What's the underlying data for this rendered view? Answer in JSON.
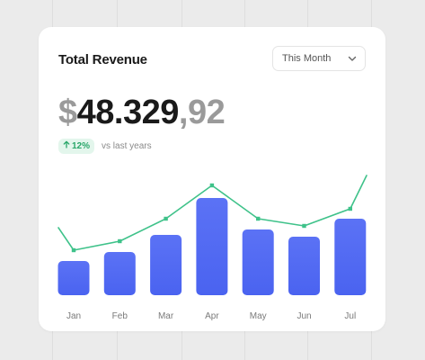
{
  "card": {
    "title": "Total Revenue",
    "period_select": {
      "value": "This Month",
      "icon": "chevron-down-icon"
    },
    "amount": {
      "currency": "$",
      "integer": "48.329",
      "separator": ",",
      "decimal": "92"
    },
    "change": {
      "arrow_icon": "arrow-up-icon",
      "value": "12%",
      "text": "vs last years"
    }
  },
  "colors": {
    "bar": "#4a63f0",
    "bar_top": "#5b72f5",
    "line": "#3fc28a",
    "badge_bg": "#e3f6ec",
    "badge_fg": "#2aa76a"
  },
  "chart_data": {
    "type": "bar",
    "categories": [
      "Jan",
      "Feb",
      "Mar",
      "Apr",
      "May",
      "Jun",
      "Jul"
    ],
    "series": [
      {
        "type": "bar",
        "values": [
          38,
          48,
          67,
          108,
          73,
          65,
          85
        ]
      },
      {
        "type": "line",
        "values": [
          50,
          60,
          85,
          122,
          85,
          77,
          96
        ]
      }
    ],
    "line_edges": {
      "start": 75,
      "end": 133
    },
    "ylim": [
      0,
      140
    ],
    "grid": false,
    "legend": "none"
  }
}
